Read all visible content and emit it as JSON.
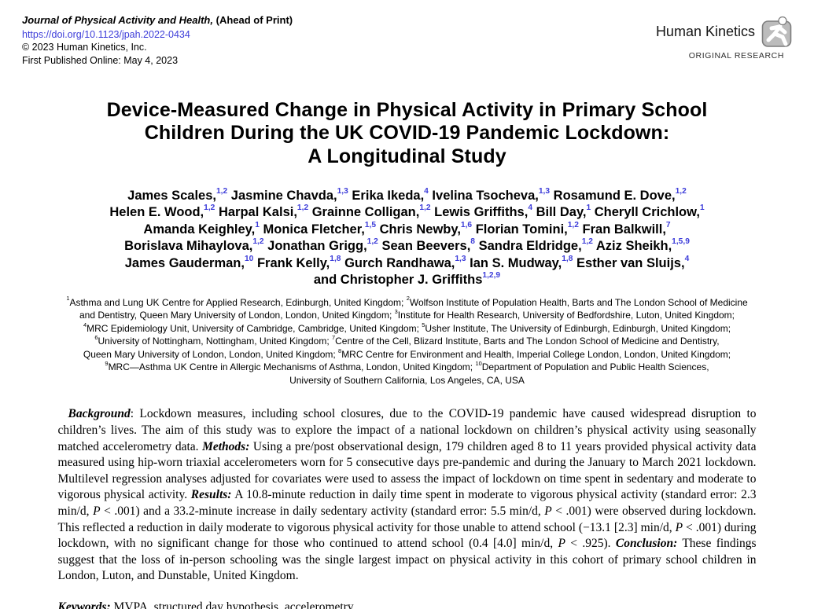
{
  "colors": {
    "link_blue": "#3c3cd9",
    "logo_fill": "#bcbcbc",
    "logo_stroke": "#7d7d7d"
  },
  "header": {
    "journal": "Journal of Physical Activity and Health,",
    "ahead_of_print": "(Ahead of Print)",
    "doi": "https://doi.org/10.1123/jpah.2022-0434",
    "copyright": "© 2023 Human Kinetics, Inc.",
    "first_published": "First Published Online: May 4, 2023",
    "brand": "Human Kinetics",
    "category": "ORIGINAL RESEARCH"
  },
  "title": {
    "lines": [
      "Device-Measured Change in Physical Activity in Primary School",
      "Children During the UK COVID-19 Pandemic Lockdown:",
      "A Longitudinal Study"
    ]
  },
  "authors": {
    "lines": [
      [
        {
          "t": "James Scales,"
        },
        {
          "s": "1,2"
        },
        {
          "t": " Jasmine Chavda,"
        },
        {
          "s": "1,3"
        },
        {
          "t": " Erika Ikeda,"
        },
        {
          "s": "4"
        },
        {
          "t": " Ivelina Tsocheva,"
        },
        {
          "s": "1,3"
        },
        {
          "t": " Rosamund E. Dove,"
        },
        {
          "s": "1,2"
        }
      ],
      [
        {
          "t": "Helen E. Wood,"
        },
        {
          "s": "1,2"
        },
        {
          "t": " Harpal Kalsi,"
        },
        {
          "s": "1,2"
        },
        {
          "t": " Grainne Colligan,"
        },
        {
          "s": "1,2"
        },
        {
          "t": " Lewis Griffiths,"
        },
        {
          "s": "4"
        },
        {
          "t": " Bill Day,"
        },
        {
          "s": "1"
        },
        {
          "t": " Cheryll Crichlow,"
        },
        {
          "s": "1"
        }
      ],
      [
        {
          "t": "Amanda Keighley,"
        },
        {
          "s": "1"
        },
        {
          "t": " Monica Fletcher,"
        },
        {
          "s": "1,5"
        },
        {
          "t": " Chris Newby,"
        },
        {
          "s": "1,6"
        },
        {
          "t": " Florian Tomini,"
        },
        {
          "s": "1,2"
        },
        {
          "t": " Fran Balkwill,"
        },
        {
          "s": "7"
        }
      ],
      [
        {
          "t": "Borislava Mihaylova,"
        },
        {
          "s": "1,2"
        },
        {
          "t": " Jonathan Grigg,"
        },
        {
          "s": "1,2"
        },
        {
          "t": " Sean Beevers,"
        },
        {
          "s": "8"
        },
        {
          "t": " Sandra Eldridge,"
        },
        {
          "s": "1,2"
        },
        {
          "t": " Aziz Sheikh,"
        },
        {
          "s": "1,5,9"
        }
      ],
      [
        {
          "t": "James Gauderman,"
        },
        {
          "s": "10"
        },
        {
          "t": " Frank Kelly,"
        },
        {
          "s": "1,8"
        },
        {
          "t": " Gurch Randhawa,"
        },
        {
          "s": "1,3"
        },
        {
          "t": " Ian S. Mudway,"
        },
        {
          "s": "1,8"
        },
        {
          "t": " Esther van Sluijs,"
        },
        {
          "s": "4"
        }
      ],
      [
        {
          "t": "and Christopher J. Griffiths"
        },
        {
          "s": "1,2,9"
        }
      ]
    ]
  },
  "affiliations": {
    "lines": [
      [
        {
          "s": "1"
        },
        {
          "t": "Asthma and Lung UK Centre for Applied Research, Edinburgh, United Kingdom; "
        },
        {
          "s": "2"
        },
        {
          "t": "Wolfson Institute of Population Health, Barts and The London School of Medicine"
        }
      ],
      [
        {
          "t": "and Dentistry, Queen Mary University of London, London, United Kingdom; "
        },
        {
          "s": "3"
        },
        {
          "t": "Institute for Health Research, University of Bedfordshire, Luton, United Kingdom;"
        }
      ],
      [
        {
          "s": "4"
        },
        {
          "t": "MRC Epidemiology Unit, University of Cambridge, Cambridge, United Kingdom; "
        },
        {
          "s": "5"
        },
        {
          "t": "Usher Institute, The University of Edinburgh, Edinburgh, United Kingdom;"
        }
      ],
      [
        {
          "s": "6"
        },
        {
          "t": "University of Nottingham, Nottingham, United Kingdom; "
        },
        {
          "s": "7"
        },
        {
          "t": "Centre of the Cell, Blizard Institute, Barts and The London School of Medicine and Dentistry,"
        }
      ],
      [
        {
          "t": "Queen Mary University of London, London, United Kingdom; "
        },
        {
          "s": "8"
        },
        {
          "t": "MRC Centre for Environment and Health, Imperial College London, London, United Kingdom;"
        }
      ],
      [
        {
          "s": "9"
        },
        {
          "t": "MRC—Asthma UK Centre in Allergic Mechanisms of Asthma, London, United Kingdom; "
        },
        {
          "s": "10"
        },
        {
          "t": "Department of Population and Public Health Sciences,"
        }
      ],
      [
        {
          "t": "University of Southern California, Los Angeles, CA, USA"
        }
      ]
    ]
  },
  "abstract": {
    "segments": [
      {
        "st": "bi",
        "t": "Background"
      },
      {
        "t": ": Lockdown measures, including school closures, due to the COVID-19 pandemic have caused widespread disruption to children’s lives. The aim of this study was to explore the impact of a national lockdown on children’s physical activity using seasonally matched accelerometry data. "
      },
      {
        "st": "bi",
        "t": "Methods:"
      },
      {
        "t": " Using a pre/post observational design, 179 children aged 8 to 11 years provided physical activity data measured using hip-worn triaxial accelerometers worn for 5 consecutive days pre-pandemic and during the January to March 2021 lockdown. Multilevel regression analyses adjusted for covariates were used to assess the impact of lockdown on time spent in sedentary and moderate to vigorous physical activity. "
      },
      {
        "st": "bi",
        "t": "Results:"
      },
      {
        "t": " A 10.8-minute reduction in daily time spent in moderate to vigorous physical activity (standard error: 2.3 min/d, "
      },
      {
        "st": "i",
        "t": "P"
      },
      {
        "t": " < .001) and a 33.2-minute increase in daily sedentary activity (standard error: 5.5 min/d, "
      },
      {
        "st": "i",
        "t": "P"
      },
      {
        "t": " < .001) were observed during lockdown. This reflected a reduction in daily moderate to vigorous physical activity for those unable to attend school (−13.1 [2.3] min/d, "
      },
      {
        "st": "i",
        "t": "P"
      },
      {
        "t": " < .001) during lockdown, with no significant change for those who continued to attend school (0.4 [4.0] min/d, "
      },
      {
        "st": "i",
        "t": "P"
      },
      {
        "t": " < .925). "
      },
      {
        "st": "bi",
        "t": "Conclusion:"
      },
      {
        "t": " These findings suggest that the loss of in-person schooling was the single largest impact on physical activity in this cohort of primary school children in London, Luton, and Dunstable, United Kingdom."
      }
    ]
  },
  "keywords": {
    "segments": [
      {
        "st": "bi",
        "t": "Keywords:"
      },
      {
        "t": " MVPA, structured day hypothesis, accelerometry"
      }
    ]
  }
}
